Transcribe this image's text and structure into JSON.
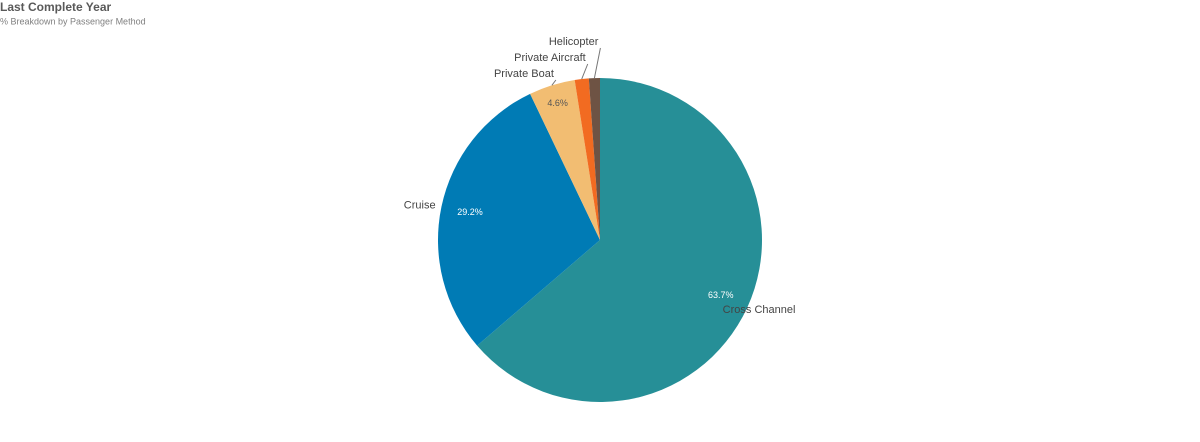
{
  "chart_data": {
    "type": "pie",
    "title": "Last Complete Year",
    "subtitle": "% Breakdown by Passenger Method",
    "categories": [
      "Cross Channel",
      "Cruise",
      "Private Boat",
      "Private Aircraft",
      "Helicopter"
    ],
    "values": [
      63.7,
      29.2,
      4.6,
      1.4,
      1.1
    ],
    "value_labels": [
      "63.7%",
      "29.2%",
      "4.6%",
      null,
      null
    ],
    "colors": [
      "#268f97",
      "#007bb5",
      "#f2bd72",
      "#f26b21",
      "#6e5344"
    ]
  }
}
